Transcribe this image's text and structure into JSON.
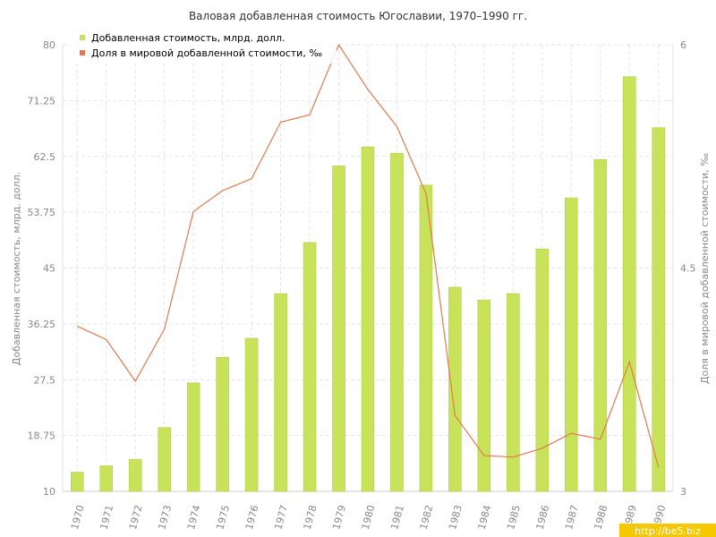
{
  "colors": {
    "bar_fill": "#c8e35a",
    "bar_stroke": "#a9c93a",
    "line": "#e07a4e",
    "grid": "#e6e6e6",
    "axis_text": "#888888",
    "watermark_bg": "#f6c800"
  },
  "watermark": "http://be5.biz",
  "chart_data": {
    "type": "bar+line",
    "title": "Валовая добавленная стоимость Югославии, 1970–1990 гг.",
    "ylabel_left": "Добавленная стоимость, млрд. долл.",
    "ylabel_right": "Доля в мировой добавленной стоимости, ‰",
    "categories": [
      "1970",
      "1971",
      "1972",
      "1973",
      "1974",
      "1975",
      "1976",
      "1977",
      "1978",
      "1979",
      "1980",
      "1981",
      "1982",
      "1983",
      "1984",
      "1985",
      "1986",
      "1987",
      "1988",
      "1989",
      "1990"
    ],
    "left_axis": {
      "min": 10,
      "max": 80,
      "ticks": [
        "10",
        "18.75",
        "27.5",
        "36.25",
        "45",
        "53.75",
        "62.5",
        "71.25",
        "80"
      ]
    },
    "right_axis": {
      "min": 3,
      "max": 6,
      "ticks": [
        "3",
        "4.5",
        "6"
      ]
    },
    "grid": true,
    "legend_position": "top-left",
    "series": [
      {
        "name": "Добавленная стоимость, млрд. долл.",
        "type": "bar",
        "axis": "left",
        "values": [
          13,
          14,
          15,
          20,
          27,
          31,
          34,
          41,
          49,
          61,
          64,
          63,
          58,
          42,
          40,
          41,
          48,
          56,
          62,
          75,
          67
        ]
      },
      {
        "name": "Доля в мировой добавленной стоимости, ‰",
        "type": "line",
        "axis": "right",
        "values": [
          4.11,
          4.02,
          3.74,
          4.09,
          4.88,
          5.02,
          5.1,
          5.48,
          5.53,
          6.0,
          5.7,
          5.45,
          5.0,
          3.51,
          3.24,
          3.23,
          3.29,
          3.39,
          3.35,
          3.87,
          3.16
        ]
      }
    ]
  }
}
